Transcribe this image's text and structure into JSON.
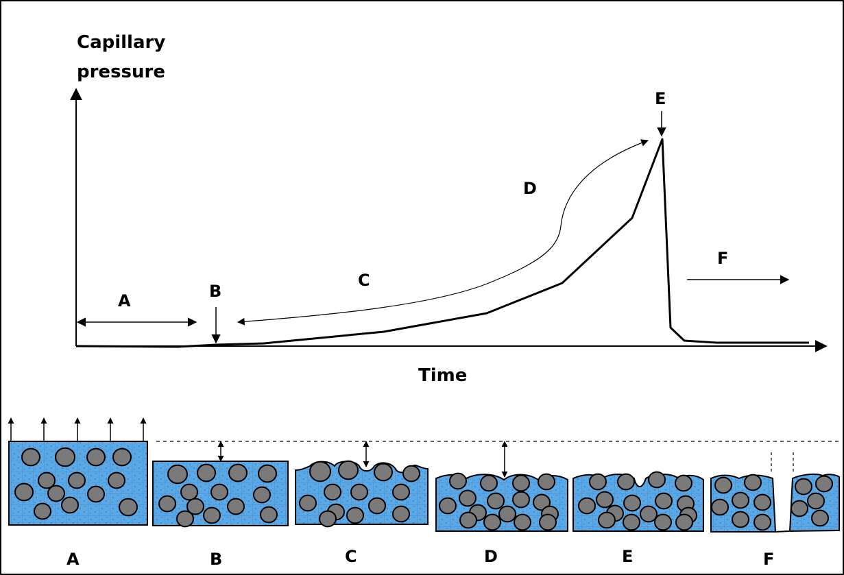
{
  "diagram": {
    "y_axis_label_line1": "Capillary",
    "y_axis_label_line2": "pressure",
    "x_axis_label": "Time",
    "stage_labels_plot": {
      "A": "A",
      "B": "B",
      "C": "C",
      "D": "D",
      "E": "E",
      "F": "F"
    },
    "stage_labels_panels": [
      "A",
      "B",
      "C",
      "D",
      "E",
      "F"
    ]
  },
  "colors": {
    "water": "#5aa8e6",
    "grid": "#3f7fbf",
    "particle_fill": "#7a7a7a",
    "outline": "#000000"
  }
}
